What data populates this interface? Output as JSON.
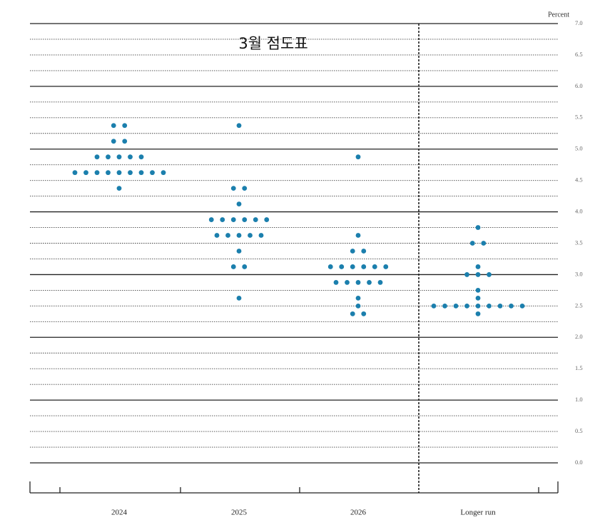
{
  "chart_data": {
    "type": "dot",
    "title": "3월 점도표",
    "y_label": "Percent",
    "categories": [
      "2024",
      "2025",
      "2026",
      "Longer run"
    ],
    "values": [
      [
        5.375,
        5.375,
        5.125,
        5.125,
        4.875,
        4.875,
        4.875,
        4.875,
        4.875,
        4.625,
        4.625,
        4.625,
        4.625,
        4.625,
        4.625,
        4.625,
        4.625,
        4.625,
        4.375
      ],
      [
        5.375,
        4.375,
        4.375,
        4.125,
        3.875,
        3.875,
        3.875,
        3.875,
        3.875,
        3.875,
        3.625,
        3.625,
        3.625,
        3.625,
        3.625,
        3.375,
        3.125,
        3.125,
        2.625
      ],
      [
        4.875,
        3.625,
        3.375,
        3.375,
        3.125,
        3.125,
        3.125,
        3.125,
        3.125,
        3.125,
        2.875,
        2.875,
        2.875,
        2.875,
        2.875,
        2.625,
        2.5,
        2.375,
        2.375
      ],
      [
        3.75,
        3.5,
        3.5,
        3.125,
        3.0,
        3.0,
        3.0,
        2.75,
        2.625,
        2.5,
        2.5,
        2.5,
        2.5,
        2.5,
        2.5,
        2.5,
        2.5,
        2.5,
        2.375
      ]
    ],
    "color": "#1b7fad",
    "ylim": [
      0,
      7
    ],
    "yticks": [
      {
        "value": 0,
        "label": "0.0"
      },
      0.5,
      {
        "value": 1,
        "label": "1.0"
      },
      1.5,
      {
        "value": 2,
        "label": "2.0"
      },
      2.5,
      {
        "value": 3,
        "label": "3.0"
      },
      3.5,
      {
        "value": 4,
        "label": "4.0"
      },
      4.5,
      {
        "value": 5,
        "label": "5.0"
      },
      5.5,
      {
        "value": 6,
        "label": "6.0"
      },
      6.5,
      {
        "value": 7,
        "label": "7.0"
      }
    ],
    "minor_yticks": [
      0.25,
      0.75,
      1.25,
      1.75,
      2.25,
      2.75,
      3.25,
      3.75,
      4.25,
      4.75,
      5.25,
      5.75,
      6.25,
      6.75
    ],
    "grid": true
  }
}
